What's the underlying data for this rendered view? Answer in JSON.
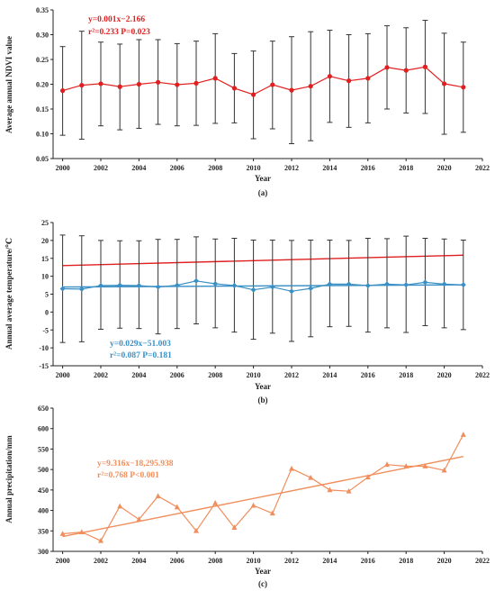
{
  "chart_data": [
    {
      "type": "line",
      "panel_label": "(a)",
      "xlabel": "Year",
      "ylabel": "Average annual NDVI value",
      "xlim": [
        1999.5,
        2022
      ],
      "ylim": [
        0.05,
        0.35
      ],
      "xticks": [
        2000,
        2002,
        2004,
        2006,
        2008,
        2010,
        2012,
        2014,
        2016,
        2018,
        2020,
        2022
      ],
      "yticks": [
        0.05,
        0.1,
        0.15,
        0.2,
        0.25,
        0.3,
        0.35
      ],
      "ytick_labels": [
        "0.05",
        "0.10",
        "0.15",
        "0.20",
        "0.25",
        "0.30",
        "0.35"
      ],
      "color": "#e02020",
      "marker": "circle",
      "x": [
        2000,
        2001,
        2002,
        2003,
        2004,
        2005,
        2006,
        2007,
        2008,
        2009,
        2010,
        2011,
        2012,
        2013,
        2014,
        2015,
        2016,
        2017,
        2018,
        2019,
        2020,
        2021
      ],
      "y": [
        0.187,
        0.198,
        0.201,
        0.195,
        0.2,
        0.204,
        0.199,
        0.202,
        0.212,
        0.192,
        0.179,
        0.199,
        0.188,
        0.196,
        0.216,
        0.207,
        0.212,
        0.234,
        0.228,
        0.235,
        0.201,
        0.194
      ],
      "err_low": [
        0.097,
        0.089,
        0.116,
        0.108,
        0.111,
        0.119,
        0.116,
        0.117,
        0.121,
        0.122,
        0.09,
        0.11,
        0.08,
        0.086,
        0.123,
        0.113,
        0.122,
        0.15,
        0.142,
        0.141,
        0.099,
        0.103
      ],
      "err_high": [
        0.276,
        0.307,
        0.285,
        0.281,
        0.29,
        0.29,
        0.282,
        0.287,
        0.302,
        0.262,
        0.267,
        0.287,
        0.296,
        0.306,
        0.309,
        0.3,
        0.302,
        0.318,
        0.314,
        0.329,
        0.303,
        0.285
      ],
      "trend": {
        "slope": 0.001,
        "intercept": -2.166,
        "x_start": 2000,
        "x_end": 2021
      },
      "annotation": [
        "y=0.001x−2.166",
        "r²=0.233   P=0.023"
      ]
    },
    {
      "type": "line",
      "panel_label": "(b)",
      "xlabel": "Year",
      "ylabel": "Annual average temperature/℃",
      "xlim": [
        1999.5,
        2022
      ],
      "ylim": [
        -15,
        25
      ],
      "xticks": [
        2000,
        2002,
        2004,
        2006,
        2008,
        2010,
        2012,
        2014,
        2016,
        2018,
        2020,
        2022
      ],
      "yticks": [
        -15,
        -10,
        -5,
        0,
        5,
        10,
        15,
        20,
        25
      ],
      "ytick_labels": [
        "-15",
        "-10",
        "-5",
        "0",
        "5",
        "10",
        "15",
        "20",
        "25"
      ],
      "color": "#3a8fc4",
      "marker": "diamond",
      "x": [
        2000,
        2001,
        2002,
        2003,
        2004,
        2005,
        2006,
        2007,
        2008,
        2009,
        2010,
        2011,
        2012,
        2013,
        2014,
        2015,
        2016,
        2017,
        2018,
        2019,
        2020,
        2021
      ],
      "y": [
        6.5,
        6.4,
        7.4,
        7.5,
        7.4,
        7.0,
        7.5,
        8.7,
        7.9,
        7.4,
        6.2,
        7.0,
        5.8,
        6.6,
        7.8,
        7.8,
        7.4,
        7.8,
        7.6,
        8.3,
        7.8,
        7.6
      ],
      "err_low": [
        -8.5,
        -8.3,
        -4.8,
        -4.5,
        -4.6,
        -6.1,
        -4.6,
        -3.3,
        -4.4,
        -5.6,
        -7.6,
        -5.9,
        -8.2,
        -6.9,
        -4.1,
        -4.0,
        -5.6,
        -4.4,
        -5.7,
        -3.8,
        -4.4,
        -4.9
      ],
      "err_high": [
        21.5,
        21.3,
        20.0,
        19.9,
        19.9,
        20.3,
        20.3,
        21.0,
        20.4,
        20.6,
        20.1,
        20.1,
        20.0,
        20.1,
        20.1,
        20.0,
        20.6,
        20.5,
        21.2,
        20.6,
        20.4,
        20.1
      ],
      "trend": {
        "slope": 0.029,
        "intercept": -51.003,
        "x_start": 2000,
        "x_end": 2021
      },
      "annotation": [
        "y=0.029x−51.003",
        "r²=0.087   P=0.181"
      ]
    },
    {
      "type": "line",
      "panel_label": "(c)",
      "xlabel": "Year",
      "ylabel": "Annual precipitation/mm",
      "xlim": [
        1999.5,
        2022
      ],
      "ylim": [
        300,
        650
      ],
      "xticks": [
        2000,
        2002,
        2004,
        2006,
        2008,
        2010,
        2012,
        2014,
        2016,
        2018,
        2020,
        2022
      ],
      "yticks": [
        300,
        350,
        400,
        450,
        500,
        550,
        600,
        650
      ],
      "ytick_labels": [
        "300",
        "350",
        "400",
        "450",
        "500",
        "550",
        "600",
        "650"
      ],
      "color": "#f08e5c",
      "marker": "triangle",
      "x": [
        2000,
        2001,
        2002,
        2003,
        2004,
        2005,
        2006,
        2007,
        2008,
        2009,
        2010,
        2011,
        2012,
        2013,
        2014,
        2015,
        2016,
        2017,
        2018,
        2019,
        2020,
        2021
      ],
      "y": [
        343,
        347,
        326,
        410,
        378,
        435,
        408,
        350,
        418,
        358,
        412,
        393,
        502,
        480,
        450,
        447,
        481,
        512,
        508,
        508,
        498,
        585
      ],
      "trend": {
        "slope": 9.316,
        "intercept": -18295.938,
        "x_start": 2000,
        "x_end": 2021
      },
      "annotation": [
        "y=9.316x−18,295.938",
        "r²=0.768    P<0.001"
      ]
    }
  ]
}
